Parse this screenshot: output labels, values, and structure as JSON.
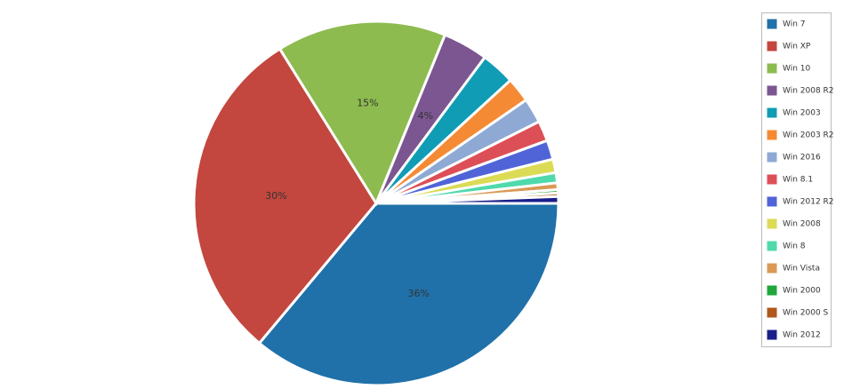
{
  "chart_data": {
    "type": "pie",
    "categories": [
      "Win 7",
      "Win XP",
      "Win 10",
      "Win 2008 R2",
      "Win 2003",
      "Win 2003 R2",
      "Win 2016",
      "Win 8.1",
      "Win 2012 R2",
      "Win 2008",
      "Win 8",
      "Win Vista",
      "Win 2000",
      "Win 2000 S",
      "Win 2012"
    ],
    "values": [
      36,
      30,
      15,
      4,
      3,
      2.2,
      2.2,
      1.8,
      1.7,
      1.2,
      0.9,
      0.6,
      0.3,
      0.3,
      0.6
    ],
    "value_labels": [
      "36%",
      "30%",
      "15%",
      "4%",
      null,
      null,
      null,
      null,
      null,
      null,
      null,
      null,
      null,
      null,
      null
    ],
    "colors": [
      "#2071a9",
      "#c3473f",
      "#8dbb4f",
      "#7b5690",
      "#109cb5",
      "#f58a34",
      "#8eaad4",
      "#dd4f56",
      "#5064d8",
      "#dbdb55",
      "#4fd9ac",
      "#d99a55",
      "#21a63c",
      "#b0571b",
      "#1b1f8a"
    ],
    "legend": "right"
  }
}
